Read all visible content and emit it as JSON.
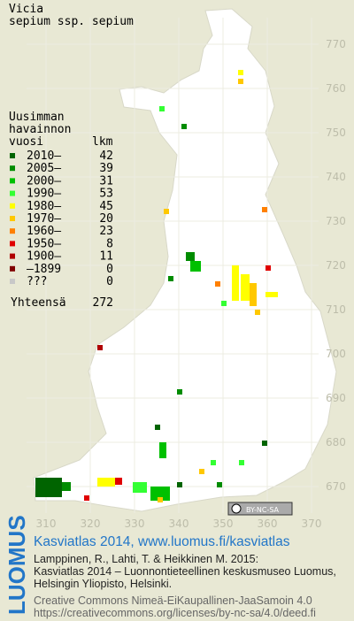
{
  "title": [
    "Vicia",
    "sepium ssp. sepium"
  ],
  "legend": {
    "heading": [
      "Uusimman",
      "havainnon",
      "vuosi"
    ],
    "count_heading": "lkm",
    "rows": [
      {
        "label": "2010–",
        "count": 42,
        "color": "#006400"
      },
      {
        "label": "2005–",
        "count": 39,
        "color": "#008c00"
      },
      {
        "label": "2000–",
        "count": 31,
        "color": "#00c000"
      },
      {
        "label": "1990–",
        "count": 53,
        "color": "#33ff33"
      },
      {
        "label": "1980–",
        "count": 45,
        "color": "#ffff00"
      },
      {
        "label": "1970–",
        "count": 20,
        "color": "#ffc800"
      },
      {
        "label": "1960–",
        "count": 23,
        "color": "#ff8000"
      },
      {
        "label": "1950–",
        "count": 8,
        "color": "#e00000"
      },
      {
        "label": "1900–",
        "count": 11,
        "color": "#b00000"
      },
      {
        "label": "–1899",
        "count": 0,
        "color": "#800000"
      },
      {
        "label": "???",
        "count": 0,
        "color": "#c8c8c8"
      }
    ],
    "total": {
      "label": "Yhteensä",
      "count": 272
    }
  },
  "grid": {
    "y_labels": [
      770,
      760,
      750,
      740,
      730,
      720,
      710,
      700,
      690,
      680,
      670
    ],
    "x_labels": [
      310,
      320,
      330,
      340,
      350,
      360,
      370
    ]
  },
  "license_badge": "BY-NC-SA",
  "footer": {
    "logo": "LUOMUS",
    "headline": "Kasviatlas 2014, www.luomus.fi/kasviatlas",
    "citation": [
      "Lamppinen, R., Lahti, T. & Heikkinen M. 2015:",
      "Kasviatlas 2014 – Luonnontieteellinen keskusmuseo Luomus,",
      "Helsingin Yliopisto, Helsinki."
    ],
    "license": [
      "Creative Commons Nimeä-EiKaupallinen-JaaSamoin 4.0",
      "https://creativecommons.org/licenses/by-nc-sa/4.0/deed.fi"
    ]
  }
}
